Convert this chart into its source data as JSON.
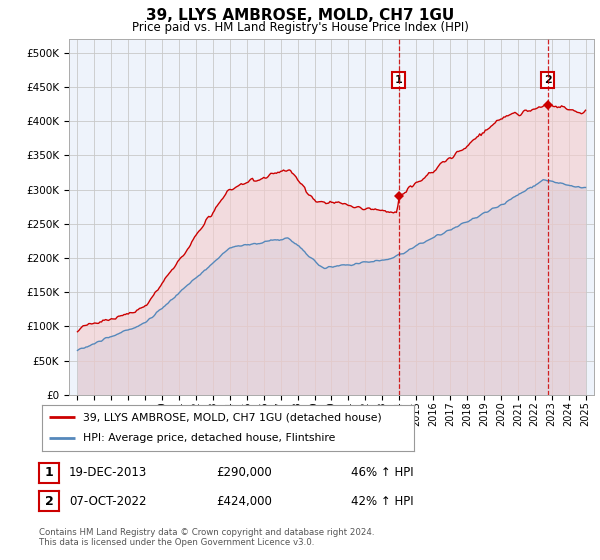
{
  "title": "39, LLYS AMBROSE, MOLD, CH7 1GU",
  "subtitle": "Price paid vs. HM Land Registry's House Price Index (HPI)",
  "legend_line1": "39, LLYS AMBROSE, MOLD, CH7 1GU (detached house)",
  "legend_line2": "HPI: Average price, detached house, Flintshire",
  "annotation1_date": "19-DEC-2013",
  "annotation1_price": "£290,000",
  "annotation1_hpi": "46% ↑ HPI",
  "annotation1_year": 2013.97,
  "annotation1_value": 290000,
  "annotation2_date": "07-OCT-2022",
  "annotation2_price": "£424,000",
  "annotation2_hpi": "42% ↑ HPI",
  "annotation2_year": 2022.77,
  "annotation2_value": 424000,
  "ylim": [
    0,
    520000
  ],
  "yticks": [
    0,
    50000,
    100000,
    150000,
    200000,
    250000,
    300000,
    350000,
    400000,
    450000,
    500000
  ],
  "xlim_start": 1994.5,
  "xlim_end": 2025.5,
  "red_color": "#cc0000",
  "blue_color": "#5588bb",
  "red_fill": "#f5cccc",
  "blue_fill": "#cce0f5",
  "plot_bg": "#eef3fb",
  "footer": "Contains HM Land Registry data © Crown copyright and database right 2024.\nThis data is licensed under the Open Government Licence v3.0."
}
